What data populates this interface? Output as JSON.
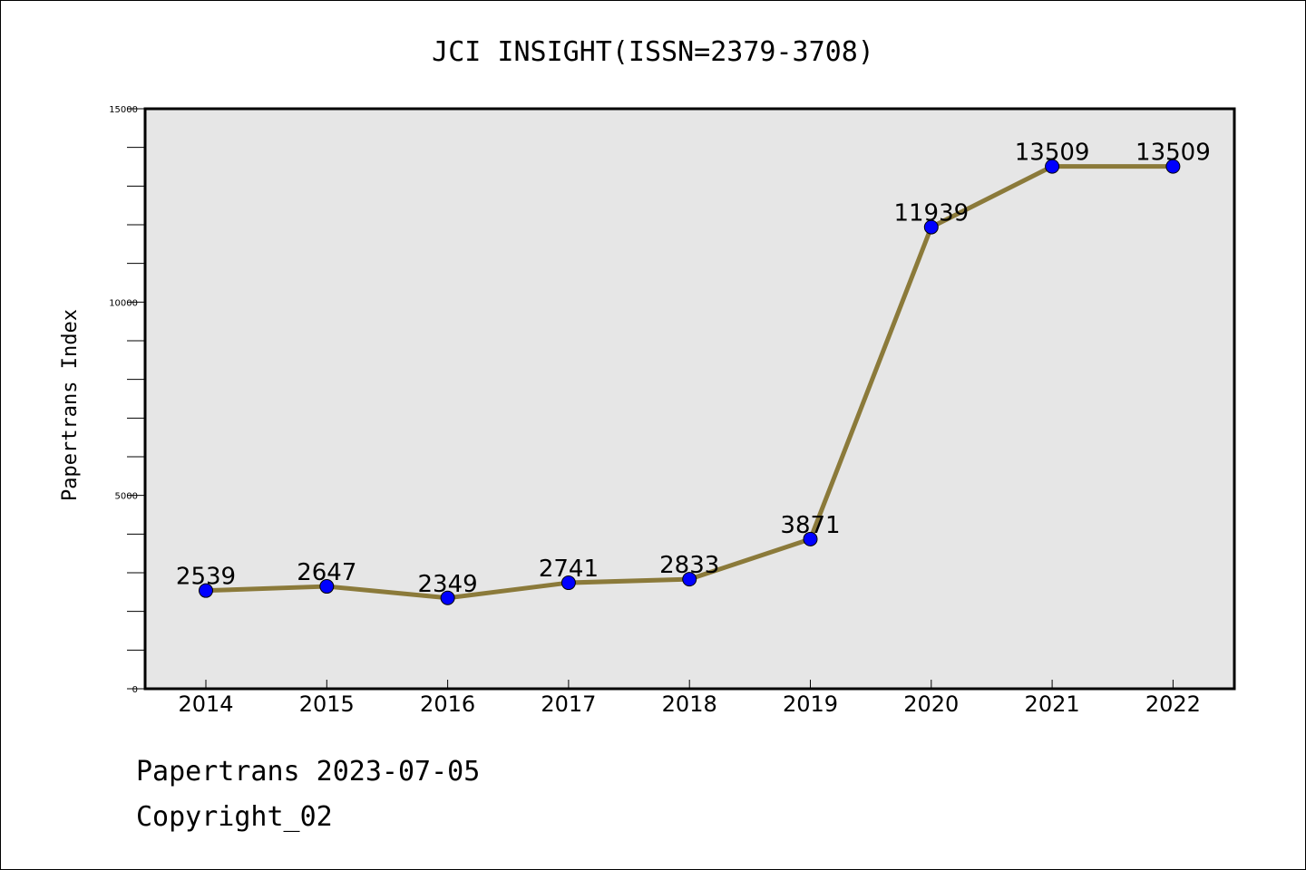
{
  "chart_data": {
    "type": "line",
    "title": "JCI INSIGHT(ISSN=2379-3708)",
    "ylabel": "Papertrans Index",
    "xlabel": "",
    "categories": [
      "2014",
      "2015",
      "2016",
      "2017",
      "2018",
      "2019",
      "2020",
      "2021",
      "2022"
    ],
    "series": [
      {
        "values": [
          2539,
          2647,
          2349,
          2741,
          2833,
          3871,
          11939,
          13509,
          13509
        ]
      }
    ],
    "ylim": [
      0,
      15000
    ],
    "yticks": [
      "0",
      "5000",
      "10000",
      "15000"
    ],
    "grid": false,
    "colors": {
      "line": "#8b7a3a",
      "marker": "#0000ff",
      "plot_background": "#e6e6e6"
    }
  },
  "footer": {
    "line1": "Papertrans 2023-07-05",
    "line2": "Copyright_02"
  }
}
